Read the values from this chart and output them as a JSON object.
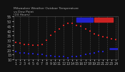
{
  "title": "Milwaukee Weather Outdoor Temperature\nvs Dew Point\n(24 Hours)",
  "background_color": "#111111",
  "plot_bg": "#111111",
  "temp_color": "#cc2222",
  "dew_color": "#2222cc",
  "grid_color": "#555555",
  "text_color": "#aaaaaa",
  "hours": [
    1,
    2,
    3,
    4,
    5,
    6,
    7,
    8,
    9,
    10,
    11,
    12,
    13,
    14,
    15,
    16,
    17,
    18,
    19,
    20,
    21,
    22,
    23,
    24
  ],
  "temp": [
    28,
    27,
    26,
    26,
    25,
    25,
    26,
    30,
    35,
    39,
    42,
    46,
    48,
    48,
    46,
    45,
    42,
    40,
    37,
    35,
    34,
    33,
    32,
    31
  ],
  "dew": [
    18,
    17,
    17,
    16,
    16,
    15,
    15,
    14,
    14,
    13,
    13,
    13,
    12,
    13,
    13,
    14,
    15,
    16,
    17,
    18,
    18,
    19,
    20,
    21
  ],
  "ylim": [
    10,
    55
  ],
  "xlim": [
    0.5,
    24.5
  ],
  "marker_size": 1.5,
  "tick_fontsize": 3.5,
  "title_fontsize": 3.2,
  "legend_blue_color": "#2222cc",
  "legend_red_color": "#cc2222",
  "dew_line_x": [
    22.5,
    24.5
  ],
  "dew_line_y": [
    21,
    21
  ],
  "yticks": [
    10,
    15,
    20,
    25,
    30,
    35,
    40,
    45,
    50,
    55
  ]
}
